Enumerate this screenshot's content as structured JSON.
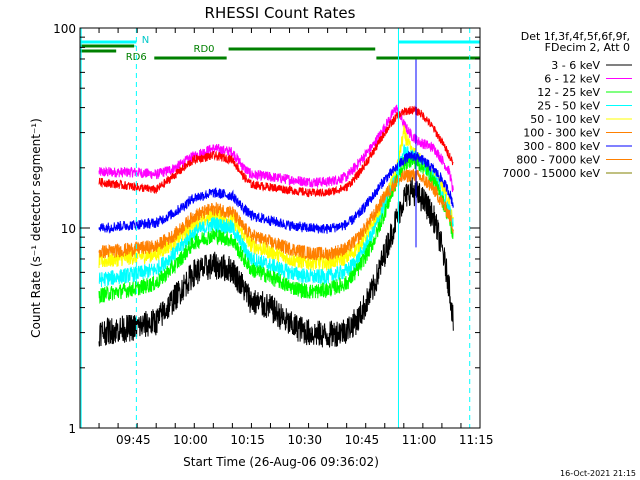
{
  "chart_data": {
    "type": "line",
    "title": "RHESSI Count Rates",
    "ylabel": "Count Rate (s⁻¹ detector segment⁻¹)",
    "xlabel": "Start Time (26-Aug-06 09:36:02)",
    "y_scale": "log",
    "ylim": [
      1,
      100
    ],
    "y_ticks": [
      {
        "v": 1,
        "label": "1"
      },
      {
        "v": 10,
        "label": "10"
      },
      {
        "v": 100,
        "label": "100"
      }
    ],
    "x_range_min": [
      -5,
      100
    ],
    "x_ticks": [
      {
        "m": 9,
        "label": "09:45"
      },
      {
        "m": 24,
        "label": "10:00"
      },
      {
        "m": 39,
        "label": "10:15"
      },
      {
        "m": 54,
        "label": "10:30"
      },
      {
        "m": 69,
        "label": "10:45"
      },
      {
        "m": 84,
        "label": "11:00"
      },
      {
        "m": 99,
        "label": "11:15"
      }
    ],
    "legend_header": [
      "Det 1f,3f,4f,5f,6f,9f,",
      "FDecim 2, Att 0"
    ],
    "legend_position": "right",
    "series": [
      {
        "name": "3 - 6 keV",
        "color": "#000000",
        "x": [
          0,
          5,
          10,
          15,
          20,
          25,
          30,
          35,
          38,
          40,
          45,
          50,
          55,
          60,
          65,
          68,
          72,
          75,
          78,
          80,
          82,
          84,
          86,
          88,
          90,
          92,
          93
        ],
        "values": [
          3.0,
          3.1,
          3.2,
          3.4,
          4.5,
          6.0,
          6.5,
          6.2,
          5.0,
          4.3,
          4.0,
          3.3,
          3.0,
          2.9,
          3.1,
          3.5,
          5.0,
          7.5,
          11,
          14,
          15.5,
          14.5,
          13,
          11,
          8,
          5,
          3.4
        ]
      },
      {
        "name": "6 - 12 keV",
        "color": "#ff00ff",
        "x": [
          0,
          5,
          10,
          15,
          20,
          25,
          30,
          35,
          38,
          40,
          45,
          50,
          55,
          60,
          65,
          68,
          72,
          75,
          78,
          80,
          82,
          84,
          86,
          88,
          90,
          92,
          93
        ],
        "values": [
          19,
          19,
          19,
          18.5,
          20,
          23,
          25,
          24,
          20,
          18.5,
          18,
          17.5,
          17,
          17,
          18,
          21,
          26,
          32,
          40,
          33,
          29,
          27,
          26,
          25,
          22,
          19,
          15
        ]
      },
      {
        "name": "12 - 25 keV",
        "color": "#00ff00",
        "x": [
          0,
          5,
          10,
          15,
          20,
          25,
          30,
          35,
          38,
          40,
          45,
          50,
          55,
          60,
          65,
          68,
          72,
          75,
          78,
          80,
          82,
          84,
          86,
          88,
          90,
          92,
          93
        ],
        "values": [
          4.6,
          4.8,
          5.0,
          5.3,
          6.5,
          8.5,
          9.2,
          8.7,
          7.0,
          6.2,
          5.7,
          5.1,
          4.8,
          4.9,
          5.3,
          6.2,
          8.5,
          12,
          17,
          21,
          22,
          21,
          19.5,
          17,
          14,
          11,
          9
        ]
      },
      {
        "name": "25 - 50 keV",
        "color": "#00ffff",
        "x": [
          0,
          5,
          10,
          15,
          20,
          25,
          30,
          35,
          38,
          40,
          45,
          50,
          55,
          60,
          65,
          68,
          72,
          75,
          78,
          80,
          82,
          84,
          86,
          88,
          90,
          92,
          93
        ],
        "values": [
          5.5,
          5.7,
          5.9,
          6.2,
          7.5,
          9.5,
          10.5,
          10,
          8.0,
          7.0,
          6.5,
          6.0,
          5.7,
          5.7,
          6.1,
          7.0,
          9.5,
          13,
          18,
          24,
          23,
          22,
          20,
          18,
          15,
          12,
          10
        ]
      },
      {
        "name": "50 - 100 keV",
        "color": "#ffff00",
        "x": [
          0,
          5,
          10,
          15,
          20,
          25,
          30,
          35,
          38,
          40,
          45,
          50,
          55,
          60,
          65,
          68,
          72,
          75,
          78,
          80,
          82,
          84,
          86,
          88,
          90,
          92,
          93
        ],
        "values": [
          6.8,
          7.0,
          7.2,
          7.4,
          8.6,
          10.5,
          11.5,
          11,
          9.2,
          8.2,
          7.6,
          7.0,
          6.7,
          6.7,
          7.1,
          8.0,
          10.5,
          14,
          19,
          30,
          24,
          22,
          20,
          18,
          16,
          13,
          11
        ]
      },
      {
        "name": "100 - 300 keV",
        "color": "#ff8000",
        "x": [
          0,
          5,
          10,
          15,
          20,
          25,
          30,
          35,
          38,
          40,
          45,
          50,
          55,
          60,
          65,
          68,
          72,
          75,
          78,
          80,
          82,
          84,
          86,
          88,
          90,
          92,
          93
        ],
        "values": [
          7.6,
          7.7,
          7.9,
          8.1,
          9.3,
          11.5,
          12.5,
          12,
          10,
          9.2,
          8.5,
          7.9,
          7.5,
          7.4,
          7.9,
          8.9,
          11.5,
          14.5,
          17,
          18,
          18.5,
          18,
          17,
          15.5,
          13.5,
          11.5,
          10
        ]
      },
      {
        "name": "300 - 800 keV",
        "color": "#0000ff",
        "x": [
          0,
          5,
          10,
          15,
          20,
          25,
          30,
          35,
          38,
          40,
          45,
          50,
          55,
          60,
          65,
          68,
          72,
          75,
          78,
          80,
          82,
          84,
          86,
          88,
          90,
          92,
          93
        ],
        "values": [
          10,
          10.2,
          10.4,
          10.6,
          12,
          14.2,
          15,
          14.5,
          12.5,
          11.5,
          10.9,
          10.3,
          10,
          9.9,
          10.4,
          11.6,
          14.5,
          17.5,
          20,
          22,
          23,
          22.5,
          21,
          19.5,
          17.5,
          15,
          13
        ]
      },
      {
        "name": "800 - 7000 keV",
        "color": "#ff8000",
        "x": [],
        "values": []
      },
      {
        "name": "7000 - 15000 keV",
        "color": "#808000",
        "x": [],
        "values": []
      },
      {
        "name": "",
        "color": "#ff0000",
        "x": [
          0,
          5,
          10,
          15,
          20,
          25,
          30,
          35,
          38,
          40,
          45,
          50,
          55,
          60,
          65,
          68,
          72,
          75,
          78,
          80,
          82,
          84,
          86,
          88,
          90,
          92,
          93
        ],
        "values": [
          17,
          16.5,
          16,
          15.5,
          18.5,
          22,
          23,
          22,
          18,
          16.5,
          16,
          15.5,
          15,
          15,
          16,
          18.5,
          24,
          30,
          36,
          38,
          39,
          38,
          35,
          31,
          27,
          23,
          21
        ]
      }
    ],
    "annotations": {
      "attenuator_label": "N",
      "rd_labels": [
        "RD0",
        "RD6"
      ],
      "timestamp": "16-Oct-2021 21:15"
    }
  }
}
